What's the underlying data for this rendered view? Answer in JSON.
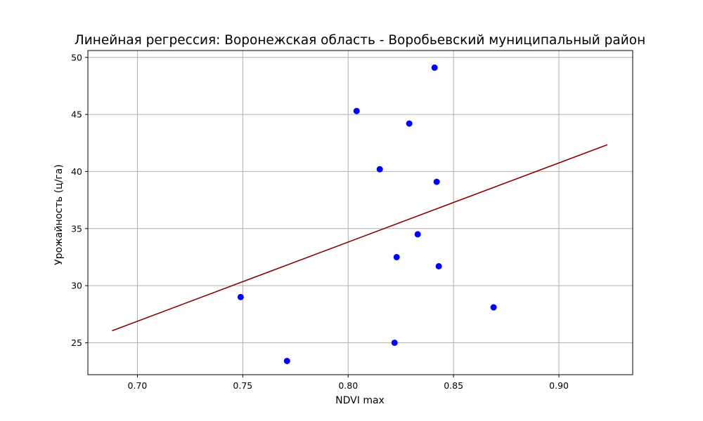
{
  "chart_data": {
    "type": "scatter",
    "title": "Линейная регрессия: Воронежская область - Воробьевский муниципальный район",
    "xlabel": "NDVI max",
    "ylabel": "Урожайность (ц/га)",
    "xlim": [
      0.6765,
      0.935
    ],
    "ylim": [
      22.2,
      50.6
    ],
    "xticks": [
      0.7,
      0.75,
      0.8,
      0.85,
      0.9
    ],
    "xtick_labels": [
      "0.70",
      "0.75",
      "0.80",
      "0.85",
      "0.90"
    ],
    "yticks": [
      25,
      30,
      35,
      40,
      45,
      50
    ],
    "ytick_labels": [
      "25",
      "30",
      "35",
      "40",
      "45",
      "50"
    ],
    "grid": true,
    "points": {
      "color": "#0000ff",
      "x": [
        0.749,
        0.771,
        0.804,
        0.815,
        0.822,
        0.823,
        0.829,
        0.833,
        0.841,
        0.842,
        0.843,
        0.869
      ],
      "y": [
        29.0,
        23.4,
        45.3,
        40.2,
        25.0,
        32.5,
        44.2,
        34.5,
        49.1,
        39.1,
        31.7,
        28.1
      ]
    },
    "regression_line": {
      "color": "#8b0000",
      "x": [
        0.688,
        0.923
      ],
      "y": [
        26.05,
        42.35
      ]
    }
  }
}
